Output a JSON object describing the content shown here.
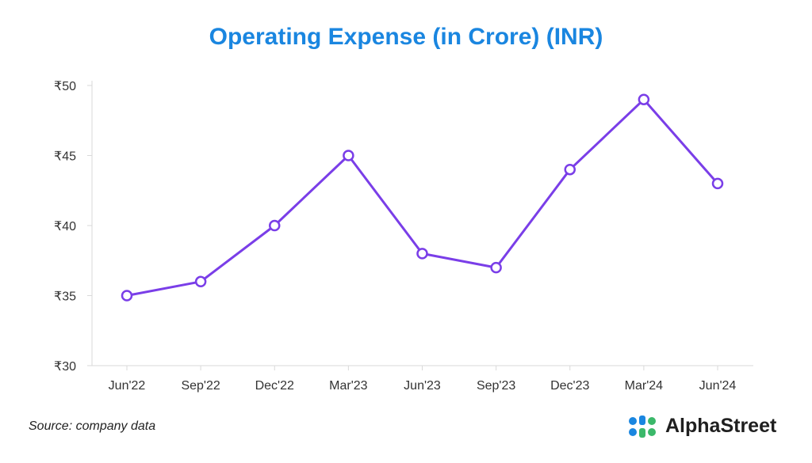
{
  "chart_data": {
    "type": "line",
    "title": "Operating Expense (in Crore) (INR)",
    "categories": [
      "Jun'22",
      "Sep'22",
      "Dec'22",
      "Mar'23",
      "Jun'23",
      "Sep'23",
      "Dec'23",
      "Mar'24",
      "Jun'24"
    ],
    "series": [
      {
        "values": [
          35,
          36,
          40,
          45,
          38,
          37,
          44,
          49,
          43
        ]
      }
    ],
    "ylim": [
      30,
      50
    ],
    "yticks": [
      30,
      35,
      40,
      45,
      50
    ],
    "ytick_prefix": "₹",
    "grid": false,
    "colors": {
      "title": "#1a86e0",
      "line": "#7a3ee8",
      "axis": "#d9d9d9",
      "tick_text": "#333333"
    }
  },
  "footer": {
    "source": "Source: company data",
    "brand": "AlphaStreet",
    "brand_colors": [
      "#1a86e0",
      "#3bb86a"
    ]
  }
}
